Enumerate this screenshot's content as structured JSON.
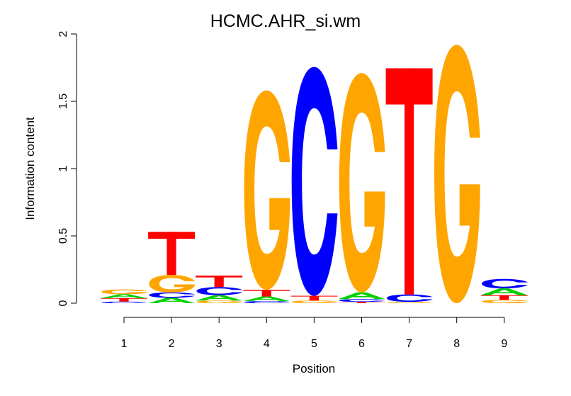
{
  "chart_data": {
    "type": "sequence-logo",
    "title": "HCMC.AHR_si.wm",
    "xlabel": "Position",
    "ylabel": "Information content",
    "ylim": [
      0,
      2
    ],
    "yticks": [
      "0",
      "0.5",
      "1",
      "1.5",
      "2"
    ],
    "yticks_values": [
      0,
      0.5,
      1,
      1.5,
      2
    ],
    "positions": [
      "1",
      "2",
      "3",
      "4",
      "5",
      "6",
      "7",
      "8",
      "9"
    ],
    "colors": {
      "A": "#00d000",
      "C": "#0000ff",
      "G": "#ffa500",
      "T": "#ff0000"
    },
    "columns": [
      {
        "position": "1",
        "letters": [
          {
            "base": "C",
            "height": 0.012
          },
          {
            "base": "T",
            "height": 0.025
          },
          {
            "base": "A",
            "height": 0.03
          },
          {
            "base": "G",
            "height": 0.035
          }
        ]
      },
      {
        "position": "2",
        "letters": [
          {
            "base": "A",
            "height": 0.04
          },
          {
            "base": "C",
            "height": 0.04
          },
          {
            "base": "G",
            "height": 0.13
          },
          {
            "base": "T",
            "height": 0.32
          }
        ]
      },
      {
        "position": "3",
        "letters": [
          {
            "base": "G",
            "height": 0.02
          },
          {
            "base": "A",
            "height": 0.04
          },
          {
            "base": "C",
            "height": 0.06
          },
          {
            "base": "T",
            "height": 0.085
          }
        ]
      },
      {
        "position": "4",
        "letters": [
          {
            "base": "C",
            "height": 0.015
          },
          {
            "base": "A",
            "height": 0.035
          },
          {
            "base": "T",
            "height": 0.05
          },
          {
            "base": "G",
            "height": 1.48
          }
        ]
      },
      {
        "position": "5",
        "letters": [
          {
            "base": "G",
            "height": 0.02
          },
          {
            "base": "T",
            "height": 0.035
          },
          {
            "base": "C",
            "height": 1.7
          }
        ]
      },
      {
        "position": "6",
        "letters": [
          {
            "base": "T",
            "height": 0.01
          },
          {
            "base": "C",
            "height": 0.02
          },
          {
            "base": "A",
            "height": 0.05
          },
          {
            "base": "G",
            "height": 1.63
          }
        ]
      },
      {
        "position": "7",
        "letters": [
          {
            "base": "G",
            "height": 0.01
          },
          {
            "base": "C",
            "height": 0.055
          },
          {
            "base": "T",
            "height": 1.68
          }
        ]
      },
      {
        "position": "8",
        "letters": [
          {
            "base": "G",
            "height": 1.92
          }
        ]
      },
      {
        "position": "9",
        "letters": [
          {
            "base": "G",
            "height": 0.025
          },
          {
            "base": "T",
            "height": 0.035
          },
          {
            "base": "A",
            "height": 0.05
          },
          {
            "base": "C",
            "height": 0.07
          }
        ]
      }
    ]
  }
}
